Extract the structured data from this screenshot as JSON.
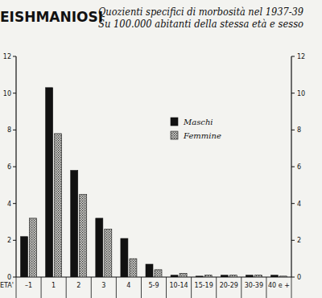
{
  "chart_data": {
    "type": "bar",
    "title": "EISHMANIOSI",
    "subtitle": [
      "Quozienti specifici di morbosità nel 1937-39",
      "Su 100.000 abitanti della stessa età e sesso"
    ],
    "x_label": "ETA'",
    "categories": [
      "–1",
      "1",
      "2",
      "3",
      "4",
      "5-9",
      "10-14",
      "15-19",
      "20-29",
      "30-39",
      "40 e +"
    ],
    "series": [
      {
        "name": "Maschi",
        "color": "#111111",
        "values": [
          2.2,
          10.3,
          5.8,
          3.2,
          2.1,
          0.7,
          0.1,
          0.05,
          0.1,
          0.1,
          0.1
        ]
      },
      {
        "name": "Femmine",
        "color": "#d4d4d0",
        "values": [
          3.2,
          7.8,
          4.5,
          2.6,
          1.0,
          0.4,
          0.2,
          0.1,
          0.1,
          0.1,
          0.05
        ]
      }
    ],
    "ylim": [
      0,
      12
    ],
    "yticks": [
      0,
      2,
      4,
      6,
      8,
      10,
      12
    ],
    "grid": false,
    "legend": "upper right"
  }
}
